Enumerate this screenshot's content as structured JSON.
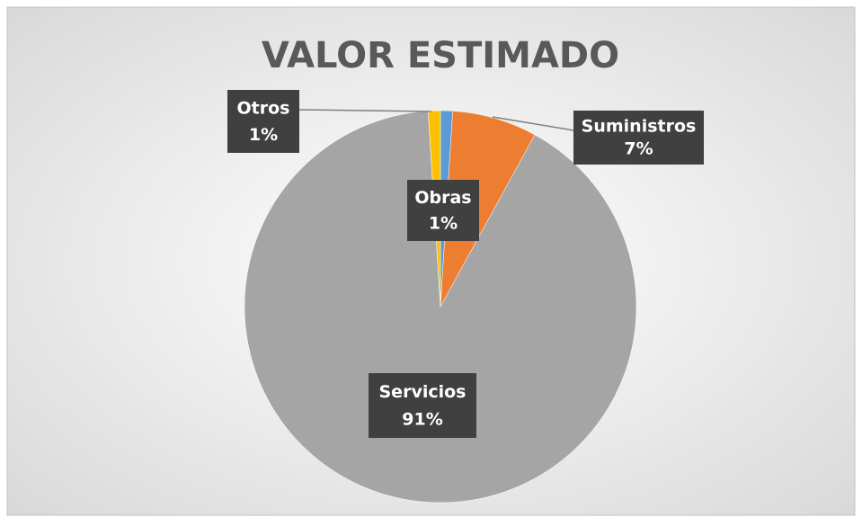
{
  "chart_data": {
    "type": "pie",
    "title": "VALOR ESTIMADO",
    "categories": [
      "Obras",
      "Suministros",
      "Servicios",
      "Otros"
    ],
    "values": [
      1,
      7,
      91,
      1
    ],
    "value_labels": [
      "1%",
      "7%",
      "91%",
      "1%"
    ],
    "colors": [
      "#5b9bd5",
      "#ed7d31",
      "#a5a5a5",
      "#ffc000"
    ]
  }
}
